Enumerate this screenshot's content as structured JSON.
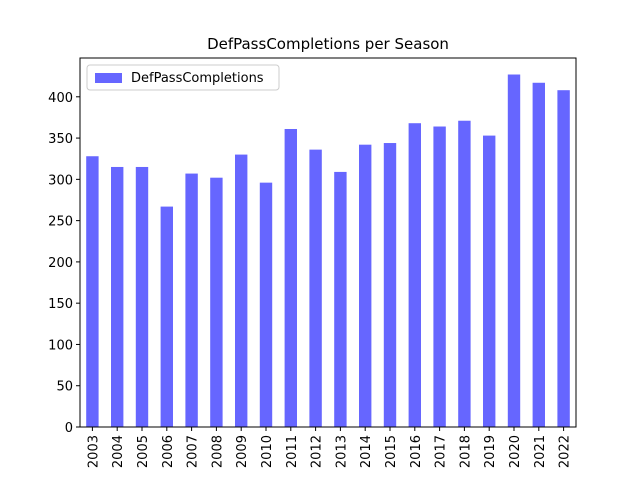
{
  "chart_data": {
    "type": "bar",
    "title": "DefPassCompletions per Season",
    "categories": [
      "2003",
      "2004",
      "2005",
      "2006",
      "2007",
      "2008",
      "2009",
      "2010",
      "2011",
      "2012",
      "2013",
      "2014",
      "2015",
      "2016",
      "2017",
      "2018",
      "2019",
      "2020",
      "2021",
      "2022"
    ],
    "series": [
      {
        "name": "DefPassCompletions",
        "color": "#6666ff",
        "values": [
          328,
          315,
          315,
          267,
          307,
          302,
          330,
          296,
          361,
          336,
          309,
          342,
          344,
          368,
          364,
          371,
          353,
          427,
          417,
          408
        ]
      }
    ],
    "ylim": [
      0,
      447
    ],
    "yticks": [
      0,
      50,
      100,
      150,
      200,
      250,
      300,
      350,
      400
    ],
    "grid": false,
    "legend": "upper-left"
  }
}
